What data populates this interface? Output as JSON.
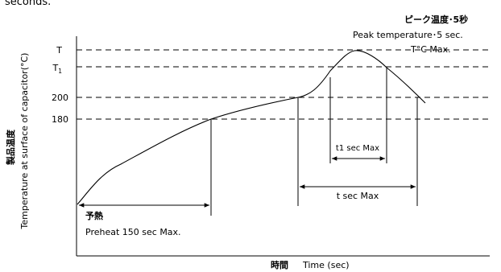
{
  "header_fragment": "seconds.",
  "y_axis": {
    "label_jp": "製品温度",
    "label_en": "Temperature at surface of capacitor(°C)"
  },
  "x_axis": {
    "label_jp": "時間",
    "label_en": "Time (sec)"
  },
  "levels": {
    "T": "T",
    "T1_main": "T",
    "T1_sub": "1",
    "l200": "200",
    "l180": "180"
  },
  "peak": {
    "jp": "ピーク温度･5秒",
    "en": "Peak temperature･5 sec.",
    "max": "T°C Max."
  },
  "preheat": {
    "jp": "予熱",
    "en": "Preheat  150 sec Max."
  },
  "t1_duration": "t1 sec Max",
  "t_duration": "t sec Max",
  "colors": {
    "line": "#000000",
    "background": "#ffffff"
  }
}
